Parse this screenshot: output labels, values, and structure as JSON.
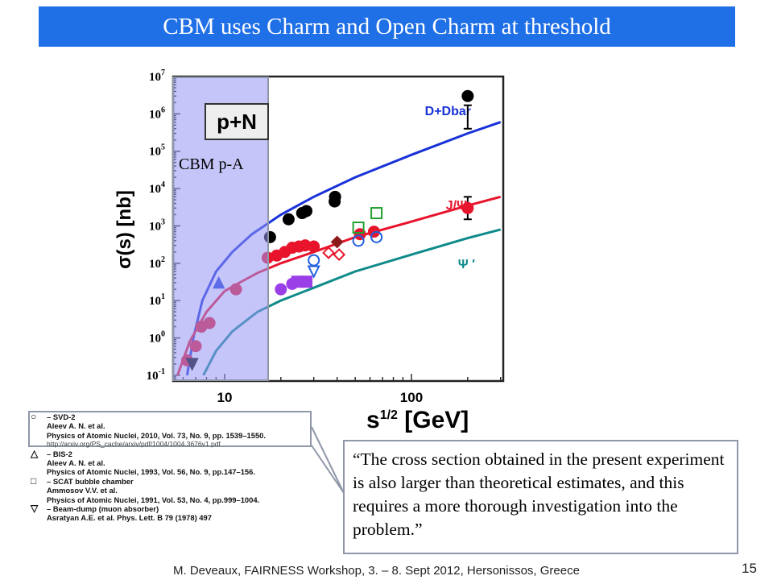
{
  "slide": {
    "title": "CBM uses Charm and Open Charm at threshold",
    "cbm_region_label": "CBM p-A",
    "quote": "“The cross section obtained in the present experiment is also larger than theoretical estimates, and this requires a more thorough investigation into the problem.”",
    "footer": "M. Deveaux, FAIRNESS Workshop, 3. – 8. Sept 2012, Hersonissos, Greece",
    "page_number": "15"
  },
  "legend_entries": [
    {
      "symbol": "○",
      "lines": [
        "– SVD-2",
        "Aleev A. N.  et al.",
        "Physics of Atomic Nuclei, 2010, Vol. 73, No. 9, pp. 1539–1550."
      ],
      "url": "http://arxiv.org/PS_cache/arxiv/pdf/1004/1004.3676v1.pdf"
    },
    {
      "symbol": "△",
      "lines": [
        "– BIS-2",
        "Aleev A. N.  et al.",
        "Physics of Atomic Nuclei, 1993, Vol. 56, No. 9, pp.147–156."
      ]
    },
    {
      "symbol": "□",
      "lines": [
        "– SCAT bubble chamber",
        "Ammosov V.V. et al.",
        "Physics of Atomic Nuclei, 1991, Vol. 53, No. 4, pp.999–1004."
      ]
    },
    {
      "symbol": "▽",
      "lines": [
        "– Beam-dump (muon absorber)",
        "Asratyan A.E. et al.  Phys. Lett. B 79 (1978) 497"
      ]
    }
  ],
  "chart_data": {
    "type": "scatter",
    "title": "p+N",
    "xlabel": "s",
    "xlabel_sup": "1/2",
    "xlabel_unit": "[GeV]",
    "ylabel": "σ(s)  [nb]",
    "xscale": "log",
    "yscale": "log",
    "xlim": [
      5.3,
      310
    ],
    "ylim": [
      0.07,
      10000000
    ],
    "x_tick_labels": [
      {
        "v": 10,
        "label": "10"
      },
      {
        "v": 100,
        "label": "100"
      }
    ],
    "y_tick_labels": [
      {
        "v": 0.1,
        "base": "10",
        "exp": "-1"
      },
      {
        "v": 1,
        "base": "10",
        "exp": "0"
      },
      {
        "v": 10,
        "base": "10",
        "exp": "1"
      },
      {
        "v": 100,
        "base": "10",
        "exp": "2"
      },
      {
        "v": 1000,
        "base": "10",
        "exp": "3"
      },
      {
        "v": 10000,
        "base": "10",
        "exp": "4"
      },
      {
        "v": 100000,
        "base": "10",
        "exp": "5"
      },
      {
        "v": 1000000,
        "base": "10",
        "exp": "6"
      },
      {
        "v": 10000000,
        "base": "10",
        "exp": "7"
      }
    ],
    "cbm_range": [
      5.5,
      13.5
    ],
    "curves": [
      {
        "name": "D+Dbar",
        "color": "#1832d8",
        "points": [
          [
            6.3,
            0.1
          ],
          [
            6.8,
            1
          ],
          [
            7.6,
            10
          ],
          [
            9,
            60
          ],
          [
            11,
            200
          ],
          [
            14,
            600
          ],
          [
            20,
            2000
          ],
          [
            30,
            6000
          ],
          [
            50,
            20000
          ],
          [
            100,
            80000
          ],
          [
            200,
            300000
          ],
          [
            300,
            600000
          ]
        ]
      },
      {
        "name": "J/Ψ",
        "color": "#e8142c",
        "points": [
          [
            5.6,
            0.1
          ],
          [
            6.5,
            0.8
          ],
          [
            8,
            5
          ],
          [
            10,
            18
          ],
          [
            12,
            30
          ],
          [
            15,
            55
          ],
          [
            20,
            100
          ],
          [
            30,
            200
          ],
          [
            50,
            500
          ],
          [
            100,
            1300
          ],
          [
            200,
            3500
          ],
          [
            300,
            6000
          ]
        ]
      },
      {
        "name": "Ψ ′",
        "color": "#0f8a8a",
        "points": [
          [
            7.7,
            0.1
          ],
          [
            9,
            0.45
          ],
          [
            11,
            1.5
          ],
          [
            15,
            5
          ],
          [
            20,
            10
          ],
          [
            30,
            22
          ],
          [
            50,
            60
          ],
          [
            100,
            170
          ],
          [
            200,
            470
          ],
          [
            300,
            800
          ]
        ]
      }
    ],
    "series": [
      {
        "name": "D+Dbar",
        "color": "#000000",
        "marker": "circle",
        "points": [
          [
            17.5,
            500
          ],
          [
            22,
            1500
          ],
          [
            26,
            2200
          ],
          [
            27.4,
            2500
          ],
          [
            38.8,
            4500
          ],
          [
            39,
            6000
          ],
          [
            200,
            3000000
          ]
        ],
        "errors": [
          [
            200,
            400000,
            1700000
          ]
        ]
      },
      {
        "name": "J/Ψ",
        "color": "#e8142c",
        "marker": "circle",
        "points": [
          [
            6.3,
            0.25
          ],
          [
            7,
            0.6
          ],
          [
            7.5,
            2
          ],
          [
            8.3,
            2.5
          ],
          [
            11.5,
            20
          ],
          [
            17,
            140
          ],
          [
            19,
            160
          ],
          [
            21,
            200
          ],
          [
            23,
            260
          ],
          [
            25,
            280
          ],
          [
            27,
            300
          ],
          [
            30,
            280
          ],
          [
            53,
            600
          ],
          [
            63,
            700
          ],
          [
            200,
            3000
          ]
        ],
        "errors": [
          [
            200,
            1500,
            6000
          ]
        ]
      },
      {
        "name": "J/Ψ",
        "color": "#e8142c",
        "marker": "diamond-open",
        "points": [
          [
            36,
            190
          ],
          [
            41,
            170
          ]
        ]
      },
      {
        "name": "J/Ψ",
        "color": "#8b1a1a",
        "marker": "diamond",
        "points": [
          [
            40,
            370
          ]
        ]
      },
      {
        "name": "J/Ψ",
        "color": "#1a3bd8",
        "marker": "triangle",
        "points": [
          [
            9.3,
            30
          ]
        ]
      },
      {
        "name": "J/Ψ",
        "color": "#000000",
        "marker": "triangle-down",
        "points": [
          [
            6.7,
            0.2
          ]
        ]
      },
      {
        "name": "J/Ψ",
        "color": "#22a030",
        "marker": "square-open",
        "points": [
          [
            65,
            2200
          ],
          [
            52,
            900
          ]
        ]
      },
      {
        "name": "J/Ψ",
        "color": "#2060e0",
        "marker": "circle-open",
        "points": [
          [
            52,
            400
          ],
          [
            65,
            500
          ],
          [
            30,
            120
          ]
        ]
      },
      {
        "name": "Ψ ′",
        "color": "#9a3ee8",
        "marker": "circle",
        "points": [
          [
            20,
            20
          ],
          [
            23,
            28
          ]
        ]
      },
      {
        "name": "Ψ ′",
        "color": "#9a3ee8",
        "marker": "square",
        "points": [
          [
            24.5,
            32
          ],
          [
            27.4,
            32
          ]
        ]
      },
      {
        "name": "Ψ ′",
        "color": "#2060e0",
        "marker": "triangle-down-open",
        "points": [
          [
            30,
            60
          ]
        ]
      }
    ]
  }
}
